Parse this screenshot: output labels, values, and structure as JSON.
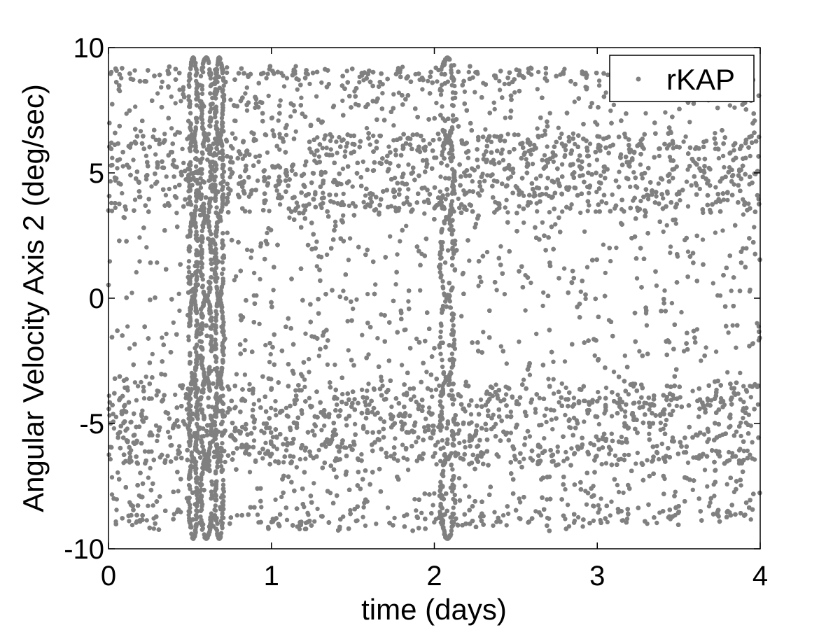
{
  "chart_data": {
    "type": "scatter",
    "xlabel": "time (days)",
    "ylabel": "Angular Velocity Axis 2 (deg/sec)",
    "xlim": [
      0,
      4
    ],
    "ylim": [
      -10,
      10
    ],
    "xticks": [
      "0",
      "1",
      "2",
      "3",
      "4"
    ],
    "yticks": [
      "10",
      "5",
      "0",
      "-5",
      "-10"
    ],
    "grid": false,
    "legend_position": "top-right",
    "color": "#808080",
    "series": [
      {
        "name": "rKAP",
        "description_values": {
          "x_range": [
            0,
            4
          ],
          "y_range": [
            -9.5,
            9.5
          ],
          "dense_bands_y": [
            5,
            -5
          ],
          "oscillation_regions_x": [
            [
              0.5,
              0.75
            ],
            [
              1.9,
              2.15
            ]
          ]
        }
      }
    ]
  }
}
